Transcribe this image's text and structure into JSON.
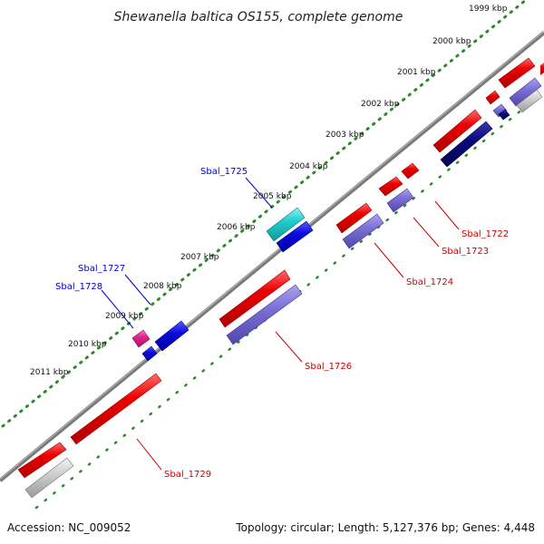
{
  "title": "Shewanella baltica OS155, complete genome",
  "footer": {
    "accession": "Accession: NC_009052",
    "summary": "Topology: circular; Length: 5,127,376 bp; Genes: 4,448"
  },
  "colors": {
    "forward_cds": "#e80000",
    "reverse_cds": "#7b70d6",
    "forward_blue": "#0b0be0",
    "reverse_navy": "#0a0a80",
    "teal": "#22cccc",
    "magenta": "#e0238a",
    "grey": "#bdbdbd",
    "backbone": "#808080",
    "tick": "#2d8a2d",
    "label_red": "#cc0000",
    "label_blue": "#0000cc"
  },
  "kbp_labels": [
    "1999 kbp",
    "2000 kbp",
    "2001 kbp",
    "2002 kbp",
    "2003 kbp",
    "2004 kbp",
    "2005 kbp",
    "2006 kbp",
    "2007 kbp",
    "2008 kbp",
    "2009 kbp",
    "2010 kbp",
    "2011 kbp"
  ],
  "gene_labels": {
    "sbal_1722": "Sbal_1722",
    "sbal_1723": "Sbal_1723",
    "sbal_1724": "Sbal_1724",
    "sbal_1725": "Sbal_1725",
    "sbal_1726": "Sbal_1726",
    "sbal_1727": "Sbal_1727",
    "sbal_1728": "Sbal_1728",
    "sbal_1729": "Sbal_1729"
  }
}
